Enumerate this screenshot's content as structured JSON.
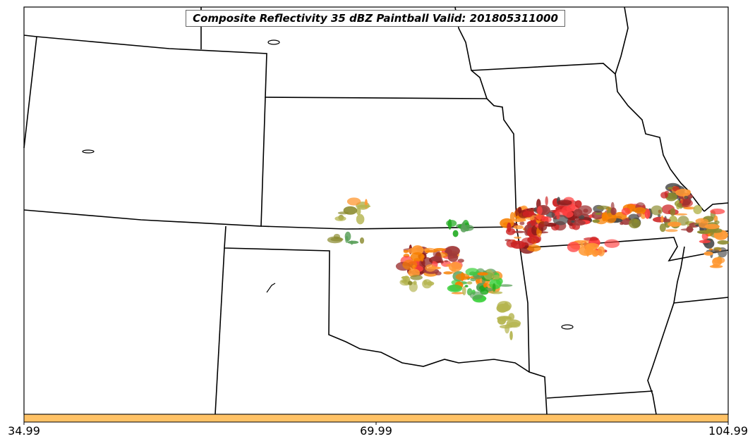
{
  "title": "Composite Reflectivity 35 dBZ Paintball Valid: 201805311000",
  "colorbar": {
    "color": "#ffc266",
    "tick_labels": [
      "34.99",
      "69.99",
      "104.99"
    ]
  },
  "colors": {
    "state_lines": "#000000",
    "storm_palette": [
      "#8b1a1a",
      "#f77f00",
      "#ff4040",
      "#1aa81a",
      "#8a8a2e",
      "#b5b550",
      "#a03a3a",
      "#4a4a4a",
      "#5aa05a",
      "#ff9933",
      "#cc2222",
      "#3cd13c"
    ]
  }
}
